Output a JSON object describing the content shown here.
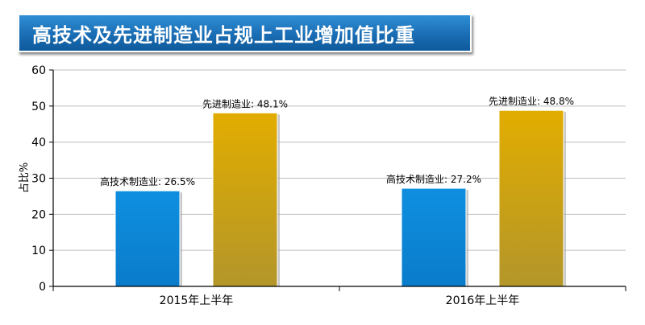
{
  "chart_data": {
    "type": "bar",
    "title": "高技术及先进制造业占规上工业增加值比重",
    "ylabel": "占比%",
    "xlabel": "",
    "ylim": [
      0,
      60
    ],
    "yticks": [
      "0",
      "10",
      "20",
      "30",
      "40",
      "50",
      "60"
    ],
    "grid": true,
    "categories": [
      "2015年上半年",
      "2016年上半年"
    ],
    "series": [
      {
        "name": "高技术制造业",
        "values": [
          26.5,
          27.2
        ],
        "labels": [
          "高技术制造业: 26.5%",
          "高技术制造业: 27.2%"
        ],
        "color": "#0a86d8"
      },
      {
        "name": "先进制造业",
        "values": [
          48.1,
          48.8
        ],
        "labels": [
          "先进制造业: 48.1%",
          "先进制造业: 48.8%"
        ],
        "color": "#d8a800"
      }
    ]
  }
}
